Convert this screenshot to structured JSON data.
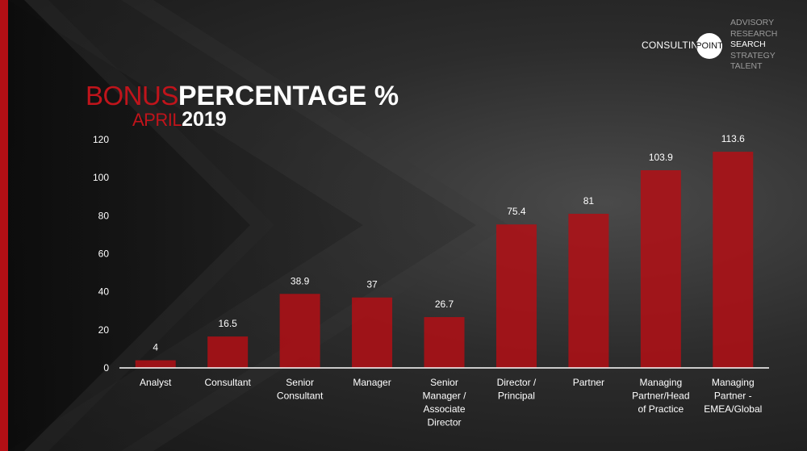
{
  "logo": {
    "consulting": "CONSULTING",
    "point": "POINT",
    "services": [
      "ADVISORY",
      "RESEARCH",
      "SEARCH",
      "STRATEGY",
      "TALENT"
    ],
    "highlight_index": 2
  },
  "title": {
    "line1_red": "BONUS",
    "line1_white": "PERCENTAGE %",
    "line2_red": "APRIL",
    "line2_white": "2019"
  },
  "colors": {
    "bar": "#b30f15",
    "accent": "#c0141b",
    "text": "#ffffff"
  },
  "chart_data": {
    "type": "bar",
    "title": "BONUS PERCENTAGE % APRIL 2019",
    "xlabel": "",
    "ylabel": "",
    "ylim": [
      0,
      120
    ],
    "yticks": [
      0,
      20,
      40,
      60,
      80,
      100,
      120
    ],
    "grid": false,
    "categories": [
      "Analyst",
      "Consultant",
      "Senior Consultant",
      "Manager",
      "Senior Manager / Associate Director",
      "Director / Principal",
      "Partner",
      "Managing Partner/Head of Practice",
      "Managing Partner - EMEA/Global"
    ],
    "category_lines": [
      [
        "Analyst"
      ],
      [
        "Consultant"
      ],
      [
        "Senior",
        "Consultant"
      ],
      [
        "Manager"
      ],
      [
        "Senior",
        "Manager /",
        "Associate",
        "Director"
      ],
      [
        "Director /",
        "Principal"
      ],
      [
        "Partner"
      ],
      [
        "Managing",
        "Partner/Head",
        "of Practice"
      ],
      [
        "Managing",
        "Partner -",
        "EMEA/Global"
      ]
    ],
    "values": [
      4,
      16.5,
      38.9,
      37,
      26.7,
      75.4,
      81,
      103.9,
      113.6
    ],
    "value_labels": [
      "4",
      "16.5",
      "38.9",
      "37",
      "26.7",
      "75.4",
      "81",
      "103.9",
      "113.6"
    ]
  }
}
